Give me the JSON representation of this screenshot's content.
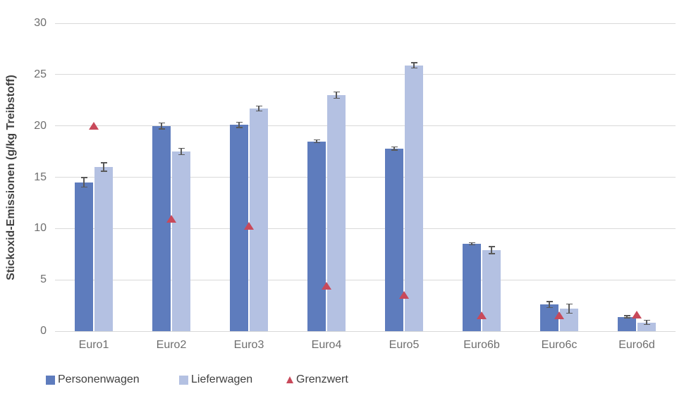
{
  "chart_data": {
    "type": "bar",
    "title": "",
    "xlabel": "",
    "ylabel": "Stickoxid-Emissionen (g/kg Treibstoff)",
    "ylim": [
      0,
      30
    ],
    "yticks": [
      0,
      5,
      10,
      15,
      20,
      25,
      30
    ],
    "grid": true,
    "legend_position": "bottom",
    "categories": [
      "Euro1",
      "Euro2",
      "Euro3",
      "Euro4",
      "Euro5",
      "Euro6b",
      "Euro6c",
      "Euro6d"
    ],
    "series": [
      {
        "name": "Personenwagen",
        "type": "bar",
        "color": "#5E7CBD",
        "values": [
          14.5,
          20.0,
          20.1,
          18.5,
          17.8,
          8.5,
          2.6,
          1.4
        ],
        "error_bars": [
          0.45,
          0.3,
          0.25,
          0.15,
          0.15,
          0.1,
          0.3,
          0.1
        ]
      },
      {
        "name": "Lieferwagen",
        "type": "bar",
        "color": "#B4C1E2",
        "values": [
          16.0,
          17.5,
          21.7,
          23.0,
          25.9,
          7.9,
          2.2,
          0.85
        ],
        "error_bars": [
          0.4,
          0.3,
          0.25,
          0.3,
          0.25,
          0.35,
          0.45,
          0.2
        ]
      },
      {
        "name": "Grenzwert",
        "type": "triangle-marker",
        "color": "#C8495A",
        "values": [
          20.0,
          10.9,
          10.2,
          4.4,
          3.5,
          1.5,
          1.5,
          1.6
        ]
      }
    ],
    "colors": {
      "gridline": "#D9D9D9",
      "axis_tick_text": "#6E6E6E",
      "axis_title_text": "#404040",
      "error_bar": "#595959",
      "legend_text": "#404040"
    }
  }
}
